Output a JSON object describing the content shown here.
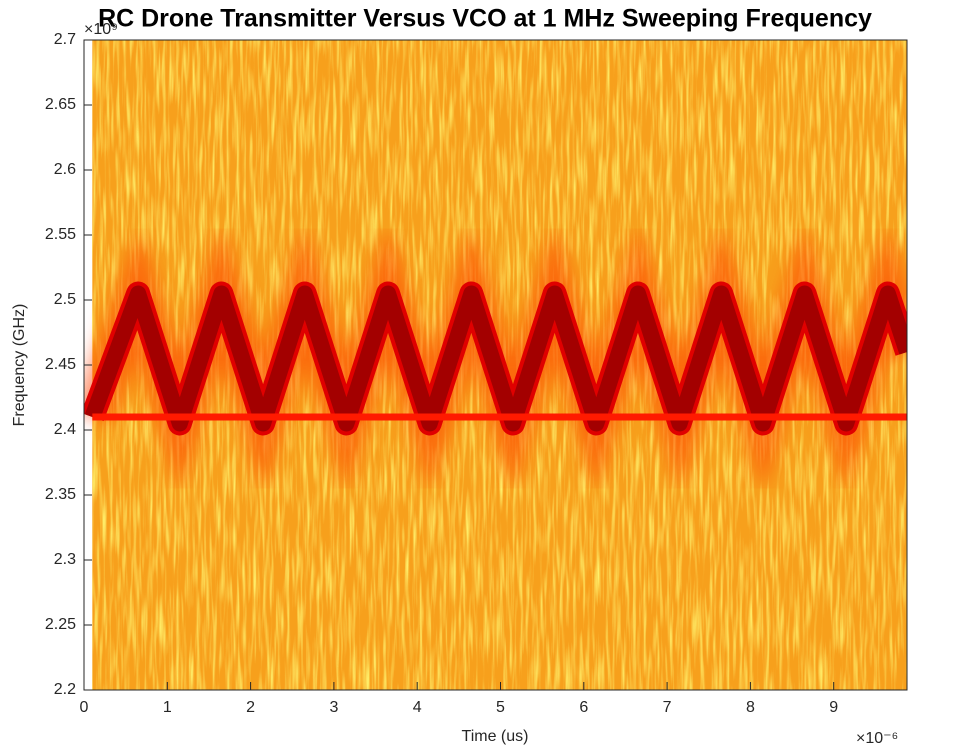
{
  "chart_data": {
    "type": "spectrogram",
    "title": "RC Drone Transmitter Versus VCO at 1 MHz Sweeping Frequency",
    "xlabel": "Time (us)",
    "ylabel": "Frequency (GHz)",
    "x_exponent": "×10⁻⁶",
    "y_exponent": "×10⁹",
    "xlim": [
      0,
      9.88
    ],
    "ylim": [
      2.2,
      2.7
    ],
    "xticks": [
      0,
      1,
      2,
      3,
      4,
      5,
      6,
      7,
      8,
      9
    ],
    "yticks": [
      2.2,
      2.25,
      2.3,
      2.35,
      2.4,
      2.45,
      2.5,
      2.55,
      2.6,
      2.65,
      2.7
    ],
    "series": [
      {
        "color": "#a30000",
        "x": [
          0.1,
          0.65,
          1.15,
          1.65,
          2.15,
          2.65,
          3.15,
          3.65,
          4.15,
          4.65,
          5.15,
          5.65,
          6.15,
          6.65,
          7.15,
          7.65,
          8.15,
          8.65,
          9.15,
          9.65,
          9.88
        ],
        "values": [
          2.41,
          2.505,
          2.405,
          2.505,
          2.405,
          2.505,
          2.405,
          2.505,
          2.405,
          2.505,
          2.405,
          2.505,
          2.405,
          2.505,
          2.405,
          2.505,
          2.405,
          2.505,
          2.405,
          2.505,
          2.46
        ]
      },
      {
        "color": "#ff1a00",
        "x": [
          0.1,
          9.88
        ],
        "values": [
          2.41,
          2.41
        ]
      }
    ]
  }
}
